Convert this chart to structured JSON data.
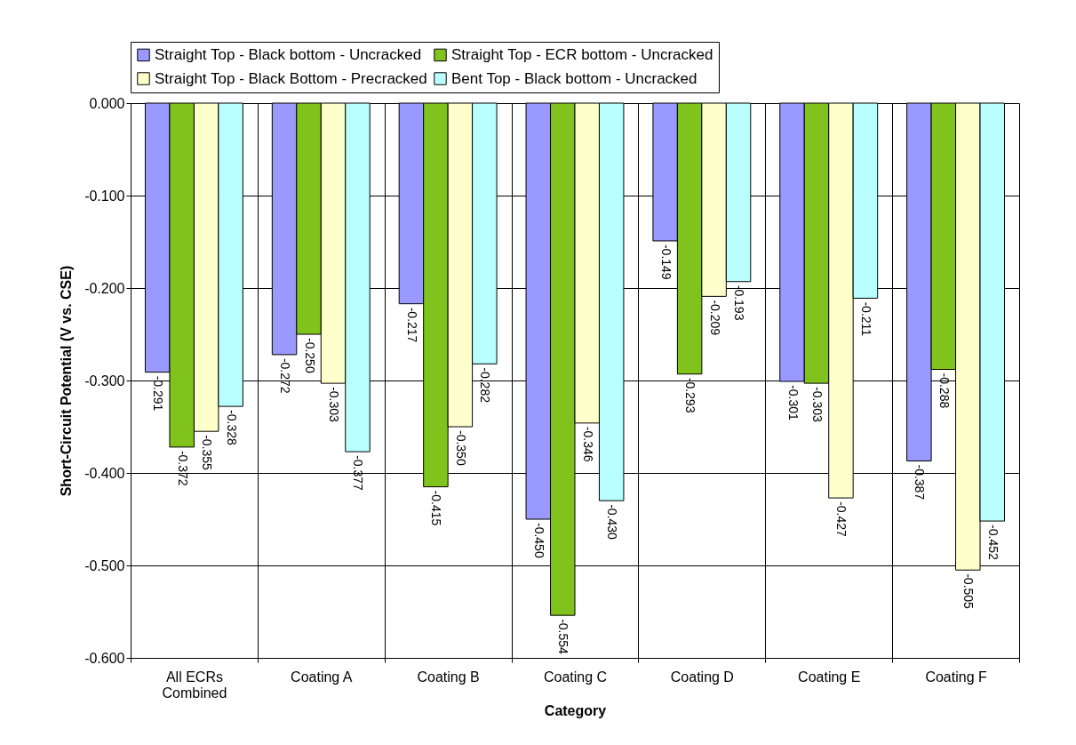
{
  "chart_data": {
    "type": "bar",
    "xlabel": "Category",
    "ylabel": "Short-Circuit Potential (V vs. CSE)",
    "categories": [
      "All ECRs Combined",
      "Coating A",
      "Coating B",
      "Coating C",
      "Coating D",
      "Coating E",
      "Coating F"
    ],
    "series": [
      {
        "name": "Straight Top - Black bottom - Uncracked",
        "color": "#9999ff",
        "values": [
          -0.291,
          -0.272,
          -0.217,
          -0.45,
          -0.149,
          -0.301,
          -0.387
        ],
        "value_labels": [
          "-0.291",
          "-0.272",
          "-0.217",
          "-0.450",
          "-0.149",
          "-0.301",
          "-0.387"
        ]
      },
      {
        "name": "Straight Top - ECR bottom - Uncracked",
        "color": "#7fc31c",
        "values": [
          -0.372,
          -0.25,
          -0.415,
          -0.554,
          -0.293,
          -0.303,
          -0.288
        ],
        "value_labels": [
          "-0.372",
          "-0.250",
          "-0.415",
          "-0.554",
          "-0.293",
          "-0.303",
          "-0.288"
        ]
      },
      {
        "name": "Straight Top - Black Bottom - Precracked",
        "color": "#ffffcc",
        "values": [
          -0.355,
          -0.303,
          -0.35,
          -0.346,
          -0.209,
          -0.427,
          -0.505
        ],
        "value_labels": [
          "-0.355",
          "-0.303",
          "-0.350",
          "-0.346",
          "-0.209",
          "-0.427",
          "-0.505"
        ]
      },
      {
        "name": "Bent Top - Black bottom - Uncracked",
        "color": "#b9ffff",
        "values": [
          -0.328,
          -0.377,
          -0.282,
          -0.43,
          -0.193,
          -0.211,
          -0.452
        ],
        "value_labels": [
          "-0.328",
          "-0.377",
          "-0.282",
          "-0.430",
          "-0.193",
          "-0.211",
          "-0.452"
        ]
      }
    ],
    "ylim": [
      -0.6,
      0
    ],
    "yticks": [
      {
        "value": -0.6,
        "label": "-0.600"
      },
      {
        "value": -0.5,
        "label": "-0.500"
      },
      {
        "value": -0.4,
        "label": "-0.400"
      },
      {
        "value": -0.3,
        "label": "-0.300"
      },
      {
        "value": -0.2,
        "label": "-0.200"
      },
      {
        "value": -0.1,
        "label": "-0.100"
      },
      {
        "value": 0,
        "label": "0.000"
      }
    ],
    "grid": true,
    "legend": "top"
  }
}
